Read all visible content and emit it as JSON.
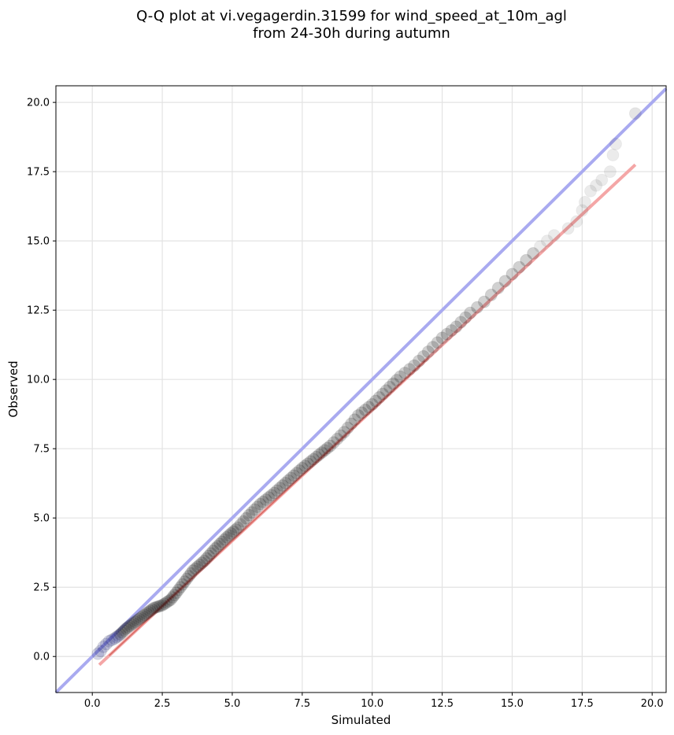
{
  "title": {
    "line1": "Q-Q plot at vi.vegagerdin.31599 for wind_speed_at_10m_agl",
    "line2": "from 24-30h during autumn"
  },
  "chart_data": {
    "type": "scatter",
    "xlabel": "Simulated",
    "ylabel": "Observed",
    "xlim": [
      -1.3,
      20.5
    ],
    "ylim": [
      -1.3,
      20.6
    ],
    "xticks": [
      0.0,
      2.5,
      5.0,
      7.5,
      10.0,
      12.5,
      15.0,
      17.5,
      20.0
    ],
    "xtick_labels": [
      "0.0",
      "2.5",
      "5.0",
      "7.5",
      "10.0",
      "12.5",
      "15.0",
      "17.5",
      "20.0"
    ],
    "yticks": [
      0.0,
      2.5,
      5.0,
      7.5,
      10.0,
      12.5,
      15.0,
      17.5,
      20.0
    ],
    "ytick_labels": [
      "0.0",
      "2.5",
      "5.0",
      "7.5",
      "10.0",
      "12.5",
      "15.0",
      "17.5",
      "20.0"
    ],
    "grid": true,
    "colors": {
      "points": "#000000",
      "identity_line": "#a9aaf0",
      "fit_line": "#f4a6a6",
      "fit_line_dense": "#c0392b"
    },
    "identity_line": {
      "x": [
        -1.3,
        20.5
      ],
      "y": [
        -1.3,
        20.5
      ]
    },
    "fit_line": {
      "x": [
        0.25,
        19.4
      ],
      "y": [
        -0.3,
        17.75
      ]
    },
    "series": [
      {
        "x": [
          0.2,
          0.3,
          0.4,
          0.5,
          0.6,
          0.7,
          0.8,
          1.0,
          1.2,
          1.4,
          1.6,
          1.8,
          2.0,
          2.2,
          2.5,
          2.8,
          3.0,
          3.3,
          3.6,
          4.0,
          4.4,
          4.8,
          5.2,
          5.6,
          6.0,
          6.5,
          7.0,
          7.5,
          8.0,
          8.5,
          9.0,
          9.5,
          10.0,
          10.5,
          11.0,
          11.5,
          12.0,
          12.5,
          13.0,
          13.5,
          14.0,
          14.5,
          15.0,
          15.5,
          16.0,
          16.5,
          17.0,
          17.3,
          17.5,
          17.6,
          17.8,
          18.0,
          18.2,
          18.5,
          18.6,
          18.7,
          19.4
        ],
        "y": [
          0.1,
          0.2,
          0.35,
          0.45,
          0.55,
          0.6,
          0.65,
          0.8,
          1.0,
          1.15,
          1.3,
          1.45,
          1.6,
          1.75,
          1.85,
          2.05,
          2.3,
          2.7,
          3.1,
          3.45,
          3.9,
          4.3,
          4.65,
          5.1,
          5.5,
          5.9,
          6.35,
          6.8,
          7.2,
          7.6,
          8.1,
          8.7,
          9.1,
          9.6,
          10.1,
          10.5,
          11.0,
          11.5,
          11.9,
          12.4,
          12.8,
          13.3,
          13.8,
          14.3,
          14.8,
          15.2,
          15.45,
          15.7,
          16.1,
          16.4,
          16.8,
          17.0,
          17.2,
          17.5,
          18.1,
          18.5,
          19.6
        ]
      }
    ]
  }
}
